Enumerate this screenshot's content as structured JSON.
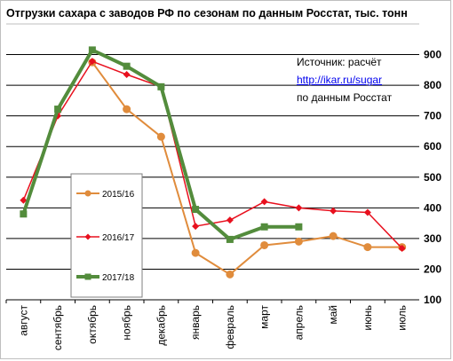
{
  "chart_data": {
    "type": "line",
    "title": "Отгрузки сахара с заводов РФ по сезонам по данным Росстат, тыс. тонн",
    "categories": [
      "август",
      "сентябрь",
      "октябрь",
      "ноябрь",
      "декабрь",
      "январь",
      "февраль",
      "март",
      "апрель",
      "май",
      "июнь",
      "июль"
    ],
    "ylim": [
      100,
      1000
    ],
    "yticks": [
      100,
      200,
      300,
      400,
      500,
      600,
      700,
      800,
      900
    ],
    "grid": "horizontal",
    "series": [
      {
        "name": "2015/16",
        "color": "#e08c3c",
        "marker": "circle",
        "values": [
          null,
          null,
          875,
          722,
          632,
          253,
          183,
          278,
          290,
          308,
          272,
          272
        ]
      },
      {
        "name": "2016/17",
        "color": "#e8101e",
        "marker": "diamond",
        "values": [
          425,
          700,
          878,
          835,
          795,
          340,
          360,
          420,
          400,
          390,
          385,
          268
        ]
      },
      {
        "name": "2017/18",
        "color": "#538c3c",
        "marker": "square",
        "values": [
          380,
          722,
          915,
          862,
          795,
          395,
          297,
          338,
          338,
          null,
          null,
          null
        ]
      }
    ],
    "annotation": {
      "line1": "Источник: расчёт",
      "link": "http://ikar.ru/sugar",
      "line3": "по данным Росстат"
    }
  }
}
